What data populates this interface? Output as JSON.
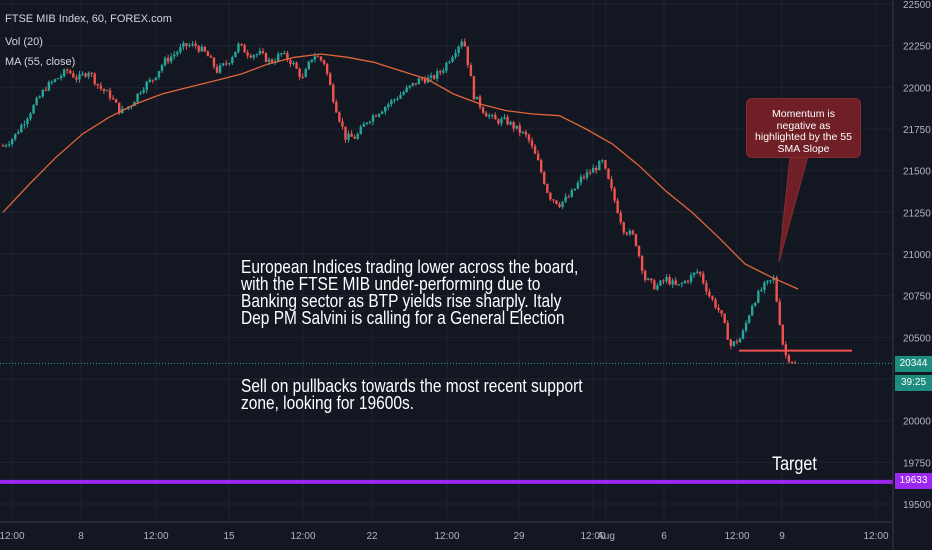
{
  "header": {
    "symbol": "FTSE MIB Index, 60, FOREX.com",
    "volume": "Vol (20)",
    "ma": "MA (55, close)"
  },
  "annotations": {
    "commentary": "European Indices trading lower across the board,\nwith the FTSE MIB under-performing due to\nBanking sector as BTP yields rise sharply. Italy\nDep PM Salvini is calling for a General Election",
    "trade": "Sell on pullbacks towards the most recent support\nzone, looking for 19600s.",
    "callout": "Momentum is negative as highlighted by the 55 SMA Slope",
    "target": "Target"
  },
  "badges": {
    "price": "20344",
    "countdown": "39:25",
    "target": "19633"
  },
  "colors": {
    "background": "#131722",
    "up": "#26a69a",
    "down": "#ef5350",
    "ma": "#e0653a",
    "target_line": "#9c27f0",
    "support_line": "#ef5350",
    "callout": "#6f1f25",
    "price_badge": "#1e8c7e"
  },
  "chart_data": {
    "type": "candlestick",
    "title": "FTSE MIB Index, 60, FOREX.com",
    "y_ticks": [
      19500,
      19750,
      20000,
      20250,
      20500,
      20750,
      21000,
      21250,
      21500,
      21750,
      22000,
      22250,
      22500
    ],
    "ylim": [
      19400,
      22500
    ],
    "x_ticks": [
      "12:00",
      "8",
      "12:00",
      "15",
      "12:00",
      "22",
      "12:00",
      "29",
      "12:00",
      "Aug",
      "6",
      "12:00",
      "9",
      "12:00"
    ],
    "ma_55": [
      21250,
      21420,
      21580,
      21720,
      21820,
      21900,
      21960,
      22000,
      22040,
      22080,
      22140,
      22180,
      22200,
      22180,
      22150,
      22100,
      22050,
      21960,
      21900,
      21860,
      21840,
      21830,
      21750,
      21660,
      21530,
      21380,
      21250,
      21100,
      20940,
      20860,
      20790
    ],
    "price_path": [
      21650,
      21700,
      21800,
      21900,
      22000,
      22050,
      22100,
      22050,
      22100,
      22000,
      21950,
      21850,
      21900,
      22000,
      22050,
      22150,
      22200,
      22250,
      22250,
      22200,
      22100,
      22150,
      22250,
      22200,
      22200,
      22150,
      22200,
      22150,
      22050,
      22200,
      22150,
      21900,
      21700,
      21700,
      21800,
      21850,
      21900,
      21950,
      22000,
      22050,
      22050,
      22100,
      22200,
      22300,
      21950,
      21850,
      21800,
      21800,
      21750,
      21700,
      21550,
      21350,
      21300,
      21350,
      21450,
      21500,
      21550,
      21350,
      21150,
      21100,
      20850,
      20800,
      20850,
      20800,
      20850,
      20900,
      20750,
      20650,
      20450,
      20500,
      20700,
      20800,
      20850,
      20400,
      20344
    ],
    "current_price": 20344,
    "target_level": 19633,
    "support_level": 20420
  }
}
